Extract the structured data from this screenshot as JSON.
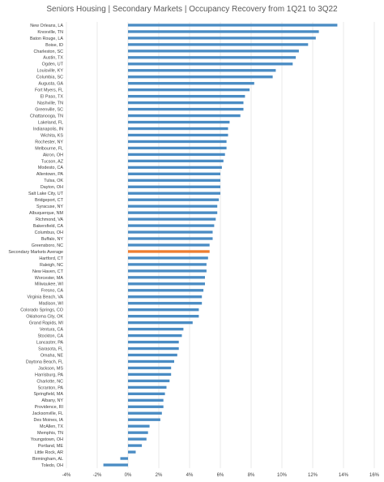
{
  "chart_data": {
    "type": "bar",
    "orientation": "horizontal",
    "title": "Seniors Housing | Secondary Markets | Occupancy Recovery from 1Q21 to 3Q22",
    "xlabel": "",
    "ylabel": "",
    "xlim": [
      -4,
      16
    ],
    "xticks": [
      -4,
      -2,
      0,
      2,
      4,
      6,
      8,
      10,
      12,
      14,
      16
    ],
    "xtick_labels": [
      "-4%",
      "-2%",
      "0%",
      "2%",
      "4%",
      "6%",
      "8%",
      "10%",
      "12%",
      "14%",
      "16%"
    ],
    "grid": true,
    "colors": {
      "bar": "#4a8cc4",
      "highlight": "#ed7d31",
      "grid": "#d9d9d9"
    },
    "highlight_category": "Secondary Markets Average",
    "categories": [
      "New Orleans, LA",
      "Knoxville, TN",
      "Baton Rouge, LA",
      "Boise, ID",
      "Charleston, SC",
      "Austin, TX",
      "Ogden, UT",
      "Louisville, KY",
      "Columbia, SC",
      "Augusta, GA",
      "Fort Myers, FL",
      "El Paso, TX",
      "Nashville, TN",
      "Greenville, SC",
      "Chattanooga, TN",
      "Lakeland, FL",
      "Indianapolis, IN",
      "Wichita, KS",
      "Rochester, NY",
      "Melbourne, FL",
      "Akron, OH",
      "Tucson, AZ",
      "Modesto, CA",
      "Allentown, PA",
      "Tulsa, OK",
      "Dayton, OH",
      "Salt Lake City, UT",
      "Bridgeport, CT",
      "Syracuse, NY",
      "Albuquerque, NM",
      "Richmond, VA",
      "Bakersfield, CA",
      "Columbus, OH",
      "Buffalo, NY",
      "Greensboro, NC",
      "Secondary Markets Average",
      "Hartford, CT",
      "Raleigh, NC",
      "New Haven, CT",
      "Worcester, MA",
      "Milwaukee, WI",
      "Fresno, CA",
      "Virginia Beach, VA",
      "Madison, WI",
      "Colorado Springs, CO",
      "Oklahoma City, OK",
      "Grand Rapids, MI",
      "Ventura, CA",
      "Stockton, CA",
      "Lancaster, PA",
      "Sarasota, FL",
      "Omaha, NE",
      "Daytona Beach, FL",
      "Jackson, MS",
      "Harrisburg, PA",
      "Charlotte, NC",
      "Scranton, PA",
      "Springfield, MA",
      "Albany, NY",
      "Providence, RI",
      "Jacksonville, FL",
      "Des Moines, IA",
      "McAllen, TX",
      "Memphis, TN",
      "Youngstown, OH",
      "Portland, ME",
      "Little Rock, AR",
      "Birmingham, AL",
      "Toledo, OH"
    ],
    "values": [
      13.6,
      12.4,
      12.2,
      11.7,
      11.1,
      10.9,
      10.7,
      9.6,
      9.4,
      8.2,
      7.9,
      7.6,
      7.5,
      7.5,
      7.3,
      6.6,
      6.5,
      6.5,
      6.4,
      6.4,
      6.3,
      6.2,
      6.1,
      6.0,
      6.0,
      6.0,
      6.0,
      5.9,
      5.8,
      5.8,
      5.7,
      5.6,
      5.5,
      5.5,
      5.3,
      5.3,
      5.2,
      5.1,
      5.1,
      5.0,
      5.0,
      4.9,
      4.8,
      4.8,
      4.6,
      4.6,
      4.2,
      3.6,
      3.5,
      3.3,
      3.3,
      3.2,
      3.0,
      2.8,
      2.8,
      2.7,
      2.5,
      2.4,
      2.3,
      2.3,
      2.2,
      2.1,
      1.4,
      1.3,
      1.2,
      0.9,
      0.5,
      -0.5,
      -1.6
    ]
  }
}
